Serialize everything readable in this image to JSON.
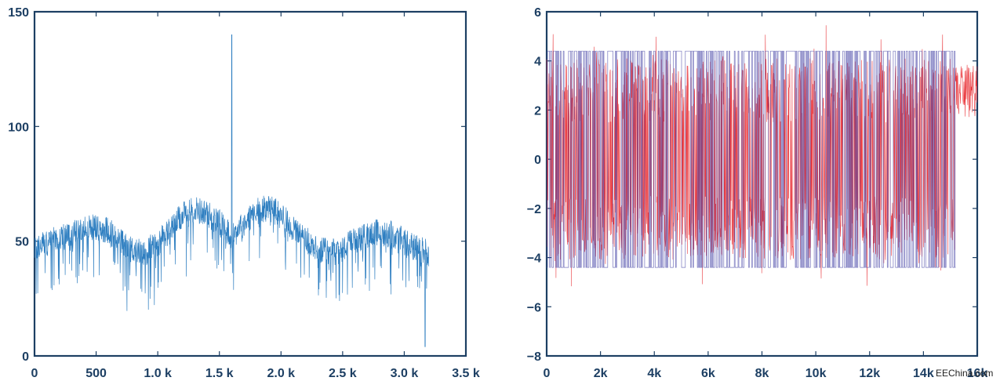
{
  "chart_data": [
    {
      "type": "line",
      "title": "",
      "xlabel": "",
      "ylabel": "",
      "xlim": [
        0,
        3500
      ],
      "ylim": [
        0,
        150
      ],
      "x_ticks": [
        0,
        500,
        1000,
        1500,
        2000,
        2500,
        3000,
        3500
      ],
      "x_tick_labels": [
        "0",
        "500",
        "1.0 k",
        "1.5 k",
        "2.0 k",
        "2.5 k",
        "3.0 k",
        "3.5 k"
      ],
      "y_ticks": [
        0,
        50,
        100,
        150
      ],
      "y_tick_labels": [
        "0",
        "50",
        "100",
        "150"
      ],
      "grid": false,
      "series": [
        {
          "color": "#2f7fc1",
          "envelope_x": [
            0,
            150,
            300,
            450,
            600,
            750,
            900,
            1050,
            1200,
            1300,
            1400,
            1500,
            1600,
            1700,
            1800,
            1900,
            2000,
            2150,
            2300,
            2450,
            2600,
            2750,
            2900,
            3050,
            3200
          ],
          "envelope_y": [
            47,
            50,
            53,
            56,
            55,
            47,
            45,
            52,
            61,
            64,
            62,
            58,
            52,
            58,
            63,
            65,
            61,
            53,
            46,
            45,
            50,
            54,
            53,
            48,
            45
          ],
          "x_extent": [
            0,
            3200
          ],
          "spike": {
            "x": 1600,
            "y": 140
          },
          "notch": {
            "x": 3170,
            "y": 4
          }
        }
      ]
    },
    {
      "type": "line",
      "title": "",
      "xlabel": "",
      "ylabel": "",
      "xlim": [
        0,
        16000
      ],
      "ylim": [
        -8,
        6
      ],
      "x_ticks": [
        0,
        2000,
        4000,
        6000,
        8000,
        10000,
        12000,
        14000,
        16000
      ],
      "x_tick_labels": [
        "0",
        "2k",
        "4k",
        "6k",
        "8k",
        "10k",
        "12k",
        "14k",
        "16k"
      ],
      "y_ticks": [
        -8,
        -6,
        -4,
        -2,
        0,
        2,
        4,
        6
      ],
      "y_tick_labels": [
        "−8",
        "−6",
        "−4",
        "−2",
        "0",
        "2",
        "4",
        "6"
      ],
      "grid": false,
      "series": [
        {
          "color": "#e8262b",
          "x_extent": [
            0,
            16000
          ],
          "upper_band_center": 2.8,
          "lower_band_center": -2.8,
          "band_spread": 1.3,
          "min": -6.2,
          "max": 5.5
        },
        {
          "color": "#4b4aa8",
          "x_extent": [
            0,
            15200
          ],
          "levels": [
            4.4,
            -4.4
          ]
        }
      ]
    }
  ],
  "watermark": "EEChina.com"
}
